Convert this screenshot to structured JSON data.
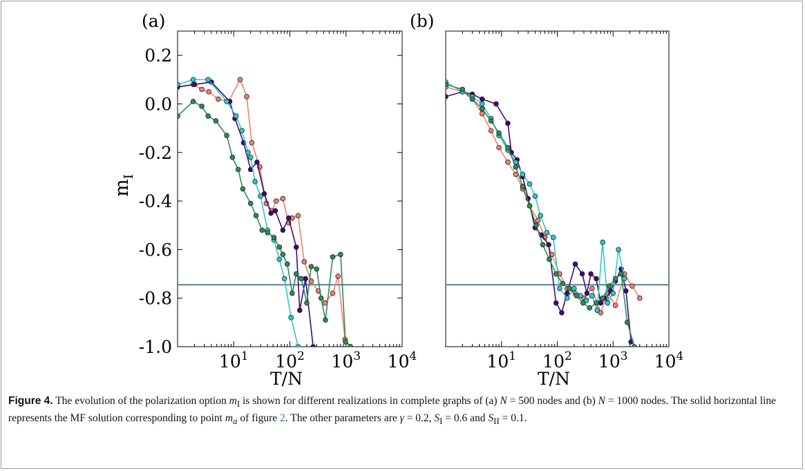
{
  "figure": {
    "label": "Figure 4.",
    "caption_parts": {
      "p1": "The evolution of the polarization option ",
      "mI": "m",
      "mI_sub": "I",
      "p2": " is shown for different realizations in complete graphs of (a) ",
      "N1": "N",
      "p3": " = 500 nodes and (b) ",
      "N2": "N",
      "p4": " = 1000 nodes. The solid horizontal line represents the MF solution corresponding to point ",
      "ma": "m",
      "ma_sub": "a",
      "p5": " of figure ",
      "fig_ref": "2",
      "p6": ". The other parameters are ",
      "gamma": "γ",
      "p7": " = 0.2, ",
      "S1": "S",
      "S1_sub": "I",
      "p8": " = 0.6 and ",
      "S2": "S",
      "S2_sub": "II",
      "p9": " = 0.1."
    },
    "ref_color": "#2a7ab0"
  },
  "chart_data": [
    {
      "type": "line",
      "panel_label": "(a)",
      "xlabel": "T/N",
      "ylabel": "m",
      "ylabel_sub": "I",
      "xscale": "log",
      "xlim": [
        1,
        10000
      ],
      "ylim": [
        -1.0,
        0.3
      ],
      "xticks": [
        10,
        100,
        1000,
        10000
      ],
      "xtick_labels": [
        "10",
        "10",
        "10",
        "10"
      ],
      "xtick_exponents": [
        "1",
        "2",
        "3",
        "4"
      ],
      "yticks": [
        0.2,
        0.0,
        -0.2,
        -0.4,
        -0.6,
        -0.8,
        -1.0
      ],
      "ytick_labels": [
        "0.2",
        "0.0",
        "-0.2",
        "-0.4",
        "-0.6",
        "-0.8",
        "-1.0"
      ],
      "hline": -0.745,
      "hline_color": "#5b7a8c",
      "series": [
        {
          "color": "#f08070",
          "x": [
            1,
            1.9,
            2.7,
            3.6,
            5.3,
            8.1,
            13,
            17,
            21,
            29,
            38,
            48,
            57,
            75,
            95,
            110,
            140,
            180,
            240,
            320,
            420,
            580,
            720,
            960,
            1200
          ],
          "y": [
            0.07,
            0.08,
            0.06,
            0.05,
            0.02,
            0.01,
            0.1,
            0.03,
            -0.16,
            -0.26,
            -0.41,
            -0.44,
            -0.4,
            -0.39,
            -0.49,
            -0.47,
            -0.46,
            -0.65,
            -0.73,
            -0.77,
            -0.82,
            -0.78,
            -0.71,
            -0.97,
            -1.0
          ]
        },
        {
          "color": "#3c0a78",
          "x": [
            1,
            2,
            4,
            8.5,
            10.5,
            15,
            20,
            26,
            35,
            46,
            55,
            75,
            95,
            130,
            150,
            190,
            260
          ],
          "y": [
            0.07,
            0.08,
            0.09,
            0.01,
            -0.06,
            -0.16,
            -0.27,
            -0.24,
            -0.37,
            -0.45,
            -0.44,
            -0.52,
            -0.47,
            -0.59,
            -0.85,
            -0.72,
            -1.0
          ]
        },
        {
          "color": "#30c8c8",
          "x": [
            1,
            1.9,
            3.5,
            7.5,
            11,
            14,
            18,
            20,
            24,
            30,
            40,
            52,
            65,
            80,
            105,
            140
          ],
          "y": [
            0.08,
            0.1,
            0.1,
            0.01,
            -0.05,
            -0.11,
            -0.2,
            -0.22,
            -0.32,
            -0.38,
            -0.52,
            -0.56,
            -0.64,
            -0.72,
            -0.88,
            -1.0
          ]
        },
        {
          "color": "#2e8b57",
          "x": [
            1,
            1.9,
            2.7,
            3.5,
            4.8,
            7.5,
            9.5,
            12,
            14.5,
            20,
            25,
            32,
            40,
            52,
            65,
            75,
            90,
            110,
            130,
            160,
            200,
            240,
            300,
            360,
            430,
            580,
            800,
            980,
            1200
          ],
          "y": [
            -0.05,
            0.01,
            -0.01,
            -0.05,
            -0.07,
            -0.13,
            -0.22,
            -0.27,
            -0.35,
            -0.41,
            -0.46,
            -0.52,
            -0.53,
            -0.55,
            -0.59,
            -0.62,
            -0.66,
            -0.78,
            -0.7,
            -0.72,
            -0.82,
            -0.67,
            -0.68,
            -0.8,
            -0.89,
            -0.63,
            -0.62,
            -0.98,
            -1.0
          ]
        }
      ]
    },
    {
      "type": "line",
      "panel_label": "(b)",
      "xlabel": "T/N",
      "ylabel": "",
      "xscale": "log",
      "xlim": [
        1,
        10000
      ],
      "ylim": [
        -1.0,
        0.3
      ],
      "xticks": [
        10,
        100,
        1000,
        10000
      ],
      "xtick_labels": [
        "10",
        "10",
        "10",
        "10"
      ],
      "xtick_exponents": [
        "1",
        "2",
        "3",
        "4"
      ],
      "yticks": [],
      "ytick_labels": [],
      "hline": -0.745,
      "hline_color": "#5b7a8c",
      "series": [
        {
          "color": "#f08070",
          "x": [
            1,
            2,
            3,
            4.5,
            6.5,
            9,
            13,
            18,
            24,
            32,
            45,
            60,
            80,
            110,
            150,
            210,
            300,
            420,
            600,
            800,
            1100,
            1600,
            2200,
            3000
          ],
          "y": [
            0.07,
            0.05,
            0.02,
            -0.04,
            -0.11,
            -0.18,
            -0.24,
            -0.29,
            -0.35,
            -0.42,
            -0.48,
            -0.55,
            -0.62,
            -0.7,
            -0.76,
            -0.78,
            -0.8,
            -0.76,
            -0.86,
            -0.78,
            -0.83,
            -0.7,
            -0.75,
            -0.8
          ]
        },
        {
          "color": "#3c0a78",
          "x": [
            1,
            2,
            3,
            4.5,
            8,
            13,
            15,
            19,
            24,
            30,
            40,
            52,
            70,
            95,
            120,
            150,
            210,
            280,
            340,
            400,
            500,
            600,
            750,
            900,
            1100,
            1400,
            1700,
            2100
          ],
          "y": [
            0.03,
            0.05,
            0.04,
            0.02,
            0.0,
            -0.08,
            -0.2,
            -0.23,
            -0.3,
            -0.39,
            -0.51,
            -0.54,
            -0.58,
            -0.82,
            -0.86,
            -0.78,
            -0.66,
            -0.7,
            -0.78,
            -0.7,
            -0.72,
            -0.82,
            -0.8,
            -0.77,
            -0.73,
            -0.68,
            -0.77,
            -0.98
          ]
        },
        {
          "color": "#30c8c8",
          "x": [
            1,
            2,
            3,
            4.5,
            6.5,
            9,
            13,
            18,
            24,
            32,
            40,
            50,
            65,
            85,
            110,
            150,
            200,
            260,
            330,
            420,
            520,
            650,
            800,
            1000,
            1250,
            1600
          ],
          "y": [
            0.09,
            0.05,
            0.03,
            0.0,
            -0.06,
            -0.13,
            -0.19,
            -0.24,
            -0.29,
            -0.33,
            -0.38,
            -0.46,
            -0.53,
            -0.55,
            -0.76,
            -0.8,
            -0.76,
            -0.79,
            -0.81,
            -0.79,
            -0.85,
            -0.57,
            -0.82,
            -0.78,
            -0.6,
            -0.72
          ]
        },
        {
          "color": "#2e8b57",
          "x": [
            1,
            2,
            3,
            4.5,
            6.5,
            9,
            13,
            18,
            24,
            32,
            42,
            55,
            72,
            95,
            125,
            165,
            220,
            290,
            380,
            500,
            650,
            850,
            1100,
            1400,
            1800,
            2400
          ],
          "y": [
            0.08,
            0.06,
            0.02,
            -0.02,
            -0.07,
            -0.12,
            -0.18,
            -0.26,
            -0.34,
            -0.42,
            -0.5,
            -0.58,
            -0.64,
            -0.7,
            -0.74,
            -0.76,
            -0.79,
            -0.82,
            -0.84,
            -0.82,
            -0.8,
            -0.75,
            -0.72,
            -0.7,
            -0.9,
            -1.0
          ]
        }
      ]
    }
  ]
}
